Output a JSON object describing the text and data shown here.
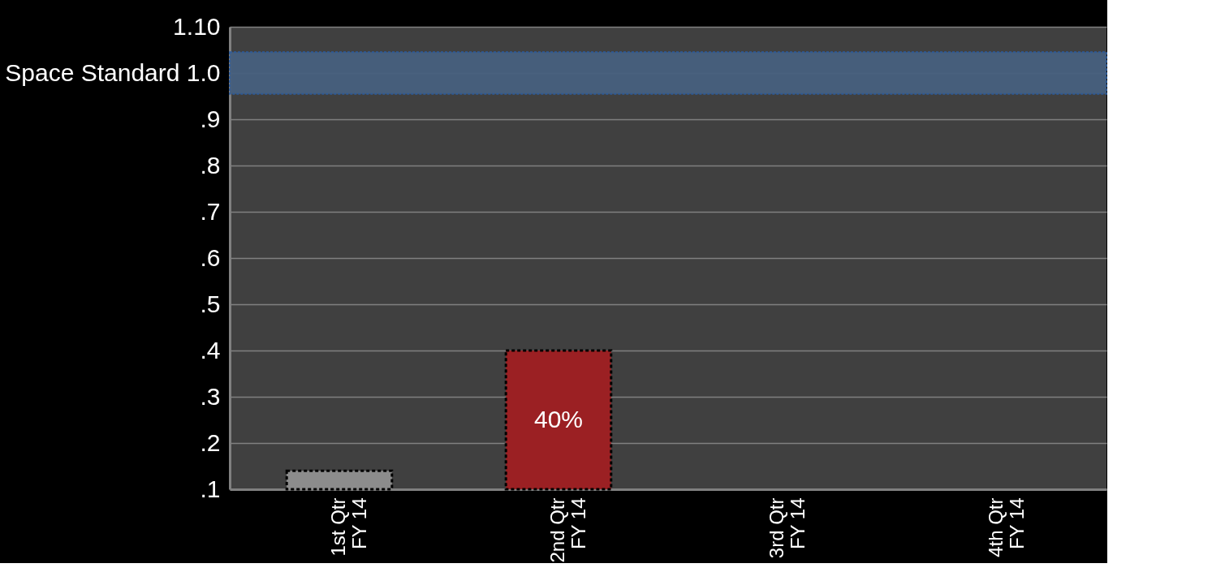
{
  "chart_data": {
    "type": "bar",
    "categories": [
      "1st Qtr\nFY 14",
      "2nd Qtr\nFY 14",
      "3rd Qtr\nFY 14",
      "4th Qtr\nFY 14"
    ],
    "values": [
      0.14,
      0.4,
      null,
      null
    ],
    "colors": [
      "#8c8c8c",
      "#9b2023",
      "#8c8c8c",
      "#8c8c8c"
    ],
    "value_labels": [
      null,
      "40%",
      null,
      null
    ],
    "ylim": [
      0.1,
      1.1
    ],
    "yticks": [
      {
        "value": 0.1,
        "label": ".1"
      },
      {
        "value": 0.2,
        "label": ".2"
      },
      {
        "value": 0.3,
        "label": ".3"
      },
      {
        "value": 0.4,
        "label": ".4"
      },
      {
        "value": 0.5,
        "label": ".5"
      },
      {
        "value": 0.6,
        "label": ".6"
      },
      {
        "value": 0.7,
        "label": ".7"
      },
      {
        "value": 0.8,
        "label": ".8"
      },
      {
        "value": 0.9,
        "label": ".9"
      },
      {
        "value": 1.0,
        "label": "Space Standard 1.0"
      },
      {
        "value": 1.1,
        "label": "1.10"
      }
    ],
    "bands": [
      {
        "axis": "y",
        "from": 0.955,
        "to": 1.045,
        "color": "#47607f"
      }
    ],
    "grid": "y"
  }
}
